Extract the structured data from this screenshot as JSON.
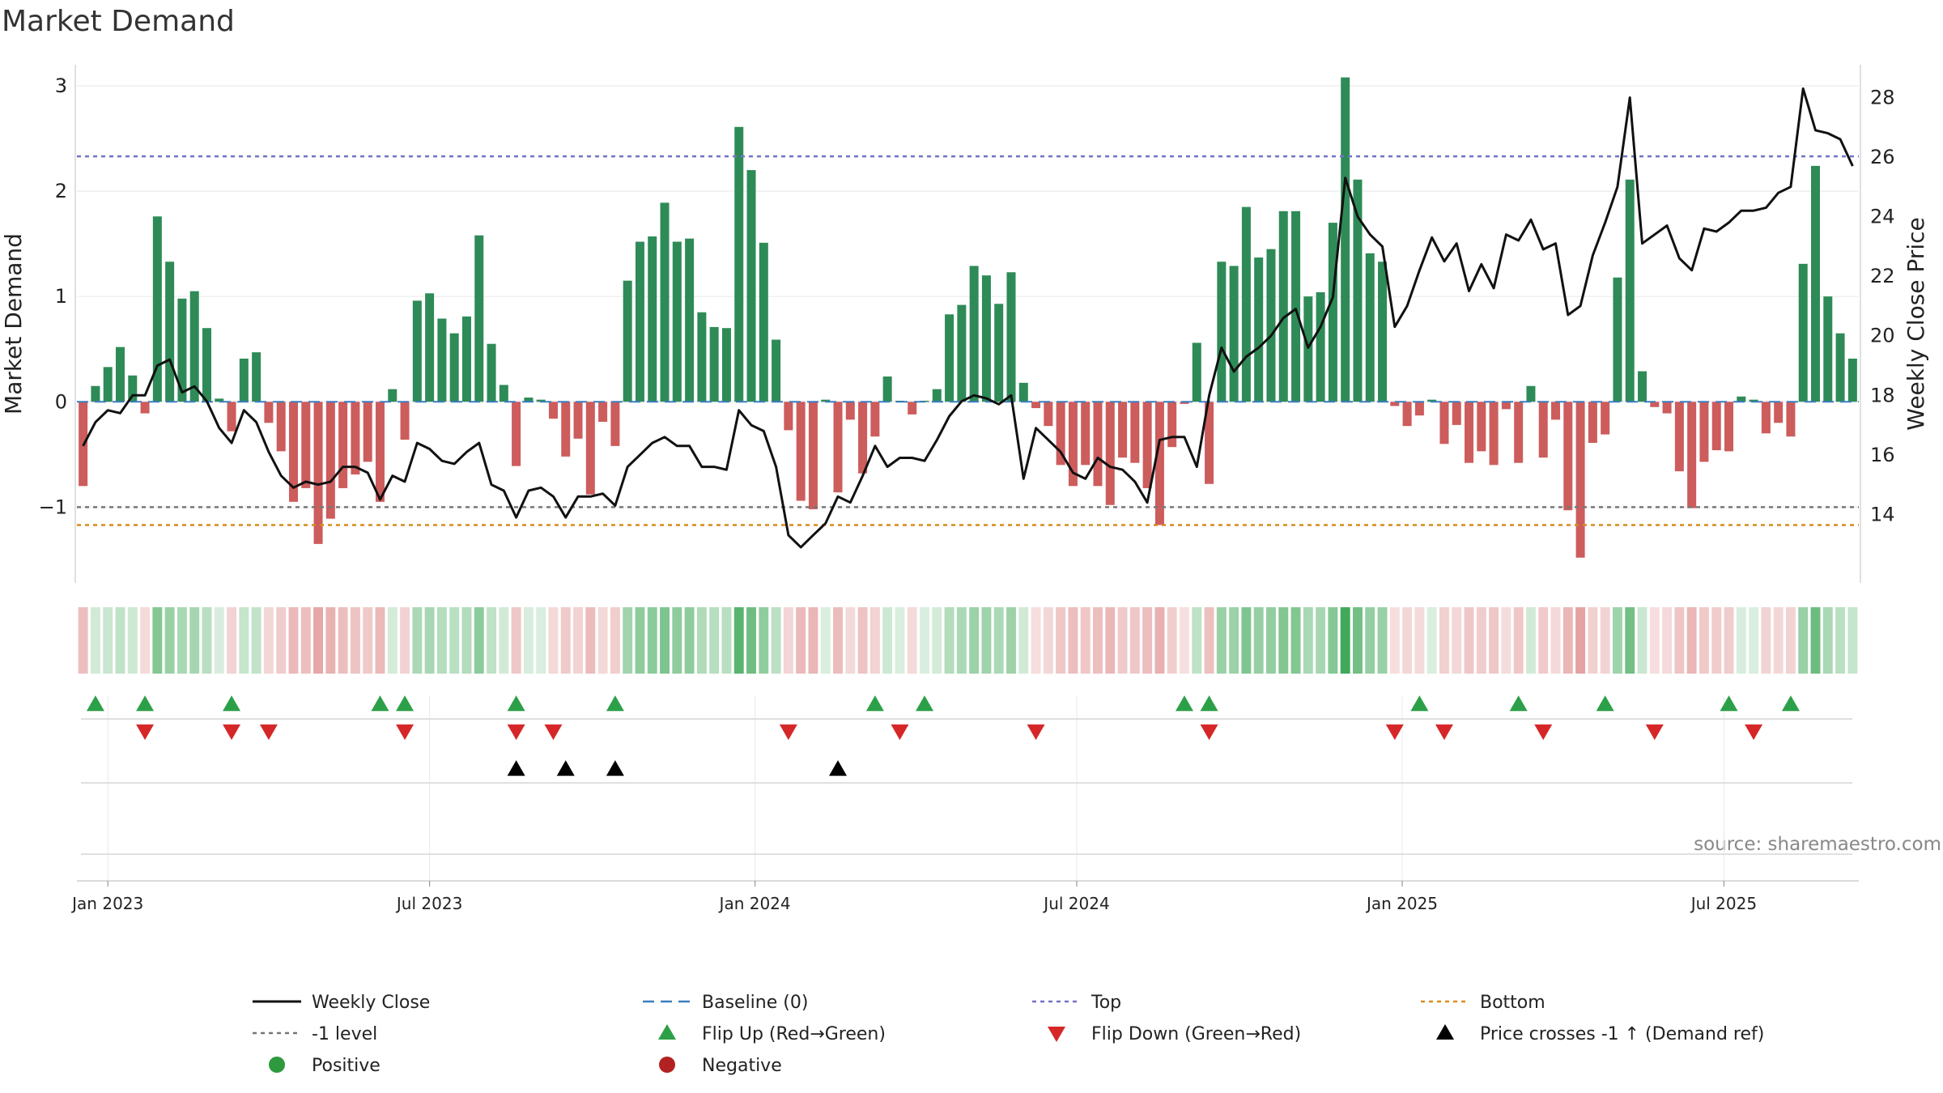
{
  "chart_data": {
    "type": "bar",
    "title": "Market Demand",
    "ylabel": "Market Demand",
    "y2label": "Weekly Close Price",
    "source": "source: sharemaestro.com",
    "ylim": [
      -1.72,
      3.2
    ],
    "y2lim": [
      11.7,
      29.1
    ],
    "y_ticks": [
      "3",
      "2",
      "1",
      "0",
      "−1"
    ],
    "y_tick_values": [
      3,
      2,
      1,
      0,
      -1
    ],
    "y2_ticks": [
      "28",
      "26",
      "24",
      "22",
      "20",
      "18",
      "16",
      "14"
    ],
    "y2_tick_values": [
      28,
      26,
      24,
      22,
      20,
      18,
      16,
      14
    ],
    "x_ticks": [
      "Jan 2023",
      "Jul 2023",
      "Jan 2024",
      "Jul 2024",
      "Jan 2025",
      "Jul 2025"
    ],
    "x_tick_weeks": [
      2,
      28,
      54.3,
      80.3,
      106.6,
      132.6
    ],
    "top_level": 2.33,
    "bottom_level": -1.17,
    "minus_one_level": -1,
    "baseline": 0,
    "bars": [
      -0.8,
      0.15,
      0.33,
      0.52,
      0.25,
      -0.11,
      1.76,
      1.33,
      0.98,
      1.05,
      0.7,
      0.03,
      -0.28,
      0.41,
      0.47,
      -0.2,
      -0.47,
      -0.95,
      -0.82,
      -1.35,
      -1.11,
      -0.82,
      -0.69,
      -0.57,
      -0.95,
      0.12,
      -0.36,
      0.96,
      1.03,
      0.79,
      0.65,
      0.81,
      1.58,
      0.55,
      0.16,
      -0.61,
      0.04,
      0.02,
      -0.16,
      -0.52,
      -0.35,
      -0.88,
      -0.19,
      -0.42,
      1.15,
      1.52,
      1.57,
      1.89,
      1.52,
      1.55,
      0.85,
      0.71,
      0.7,
      2.61,
      2.2,
      1.51,
      0.59,
      -0.27,
      -0.94,
      -1.02,
      0.02,
      -0.86,
      -0.17,
      -0.68,
      -0.33,
      0.24,
      0.01,
      -0.12,
      0.01,
      0.12,
      0.83,
      0.92,
      1.29,
      1.2,
      0.93,
      1.23,
      0.18,
      -0.06,
      -0.23,
      -0.6,
      -0.8,
      -0.6,
      -0.8,
      -0.98,
      -0.53,
      -0.58,
      -0.82,
      -1.17,
      -0.43,
      -0.02,
      0.56,
      -0.78,
      1.33,
      1.29,
      1.85,
      1.37,
      1.45,
      1.81,
      1.81,
      1.0,
      1.04,
      1.7,
      3.08,
      2.11,
      1.41,
      1.33,
      -0.04,
      -0.23,
      -0.13,
      0.02,
      -0.4,
      -0.22,
      -0.58,
      -0.47,
      -0.6,
      -0.07,
      -0.58,
      0.15,
      -0.53,
      -0.17,
      -1.03,
      -1.48,
      -0.39,
      -0.31,
      1.18,
      2.11,
      0.29,
      -0.05,
      -0.11,
      -0.66,
      -1.01,
      -0.57,
      -0.46,
      -0.47,
      0.05,
      0.02,
      -0.3,
      -0.2,
      -0.33,
      1.31,
      2.24,
      1.0,
      0.65,
      0.41
    ],
    "price": [
      16.3,
      17.1,
      17.5,
      17.4,
      18.0,
      18.0,
      19.0,
      19.2,
      18.1,
      18.3,
      17.8,
      16.9,
      16.4,
      17.5,
      17.1,
      16.1,
      15.3,
      14.9,
      15.1,
      15.0,
      15.1,
      15.6,
      15.6,
      15.4,
      14.5,
      15.3,
      15.1,
      16.4,
      16.2,
      15.8,
      15.7,
      16.1,
      16.4,
      15.0,
      14.8,
      13.9,
      14.8,
      14.9,
      14.6,
      13.9,
      14.6,
      14.6,
      14.7,
      14.3,
      15.6,
      16.0,
      16.4,
      16.6,
      16.3,
      16.3,
      15.6,
      15.6,
      15.5,
      17.5,
      17.0,
      16.8,
      15.6,
      13.3,
      12.9,
      13.3,
      13.7,
      14.6,
      14.4,
      15.3,
      16.3,
      15.6,
      15.9,
      15.9,
      15.8,
      16.5,
      17.3,
      17.8,
      18.0,
      17.9,
      17.7,
      18.0,
      15.2,
      16.9,
      16.5,
      16.1,
      15.4,
      15.2,
      15.9,
      15.6,
      15.5,
      15.1,
      14.4,
      16.5,
      16.6,
      16.6,
      15.6,
      18.0,
      19.6,
      18.8,
      19.3,
      19.6,
      20.0,
      20.6,
      20.9,
      19.6,
      20.3,
      21.3,
      25.3,
      24.0,
      23.4,
      23.0,
      20.3,
      21.0,
      22.2,
      23.3,
      22.5,
      23.1,
      21.5,
      22.4,
      21.6,
      23.4,
      23.2,
      23.9,
      22.9,
      23.1,
      20.7,
      21.0,
      22.7,
      23.8,
      25.0,
      28.0,
      23.1,
      23.4,
      23.7,
      22.6,
      22.2,
      23.6,
      23.5,
      23.8,
      24.2,
      24.2,
      24.3,
      24.8,
      25.0,
      28.3,
      26.9,
      26.8,
      26.6,
      25.7
    ],
    "flip_up_weeks": [
      1,
      5,
      12,
      24,
      26,
      35,
      43,
      64,
      68,
      89,
      91,
      108,
      116,
      123,
      133,
      138
    ],
    "flip_down_weeks": [
      5,
      12,
      15,
      26,
      35,
      38,
      57,
      66,
      77,
      91,
      106,
      110,
      118,
      127,
      135
    ],
    "price_cross_weeks": [
      35,
      39,
      43,
      61
    ],
    "legend": [
      {
        "label": "Weekly Close",
        "kind": "line",
        "color": "#111111"
      },
      {
        "label": "Baseline (0)",
        "kind": "dash",
        "color": "#3a7ebf"
      },
      {
        "label": "Top",
        "kind": "dot",
        "color": "#7272c8"
      },
      {
        "label": "Bottom",
        "kind": "dot",
        "color": "#d98a1e"
      },
      {
        "label": "-1 level",
        "kind": "dot",
        "color": "#777777"
      },
      {
        "label": "Flip Up (Red→Green)",
        "kind": "tri-up",
        "color": "#2ca048"
      },
      {
        "label": "Flip Down (Green→Red)",
        "kind": "tri-down",
        "color": "#d62728"
      },
      {
        "label": "Price crosses -1 ↑ (Demand ref)",
        "kind": "tri-up",
        "color": "#000000"
      },
      {
        "label": "Positive",
        "kind": "circle",
        "color": "#2e9a3e"
      },
      {
        "label": "Negative",
        "kind": "circle",
        "color": "#b22222"
      }
    ],
    "colors": {
      "positive_bar": "#2e8b57",
      "negative_bar": "#cd5c5c",
      "price_line": "#111111",
      "top_line": "#7272c8",
      "bottom_line": "#d98a1e",
      "minus_one_line": "#777777",
      "baseline": "#3a7ebf"
    }
  }
}
